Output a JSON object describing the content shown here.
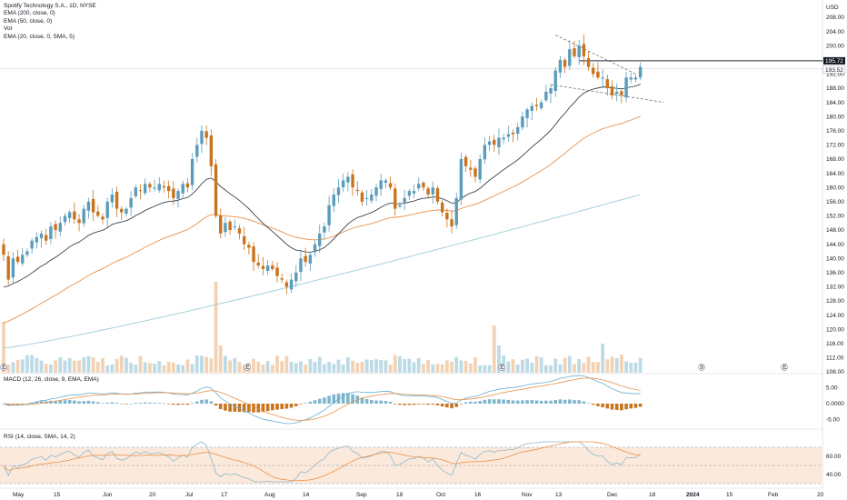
{
  "legend": {
    "symbol": "Spotify Technology S.A., 1D, NYSE",
    "ema200": "EMA (200, close, 0)",
    "ema50": "EMA (50, close, 0)",
    "vol": "Vol",
    "ema20": "EMA (20, close, 0, SMA, 5)"
  },
  "currency": "USD",
  "macd_label": "MACD (12, 26, close, 9, EMA, EMA)",
  "rsi_label": "RSI (14, close, SMA, 14, 2)",
  "price_tags": {
    "upper": "195.72",
    "lower": "193.52"
  },
  "event_markers": [
    "E",
    "E",
    "E",
    "9",
    "E"
  ],
  "colors": {
    "up": "#5b9cbb",
    "down": "#c8741f",
    "ema20": "#2a2e39",
    "ema50": "#e8924a",
    "ema200": "#9ccbd6",
    "macd": "#6aaed0",
    "signal": "#e8924a",
    "rsi": "#8fb8cc",
    "rsi_ma": "#e8924a",
    "rsi_band": "#fbe9dc"
  },
  "chart_data": [
    {
      "type": "candlestick",
      "title": "Spotify Technology S.A., 1D, NYSE",
      "ylabel": "USD",
      "ylim": [
        108,
        210
      ],
      "y_ticks": [
        "208.00",
        "204.00",
        "200.00",
        "196.00",
        "192.00",
        "188.00",
        "184.00",
        "180.00",
        "176.00",
        "172.00",
        "168.00",
        "164.00",
        "160.00",
        "156.00",
        "152.00",
        "148.00",
        "144.00",
        "140.00",
        "136.00",
        "132.00",
        "128.00",
        "124.00",
        "120.00",
        "116.00",
        "112.00",
        "108.00"
      ],
      "x_ticks": [
        "May",
        "15",
        "Jun",
        "20",
        "Jul",
        "17",
        "Aug",
        "14",
        "Sep",
        "18",
        "Oct",
        "16",
        "Nov",
        "13",
        "Dec",
        "18",
        "2024",
        "15",
        "Feb",
        "20"
      ],
      "closes": [
        141,
        134,
        140,
        139,
        141,
        142,
        145,
        146,
        147,
        145,
        149,
        148,
        150,
        152,
        153,
        151,
        150,
        154,
        156,
        153,
        152,
        151,
        156,
        158,
        154,
        153,
        154,
        157,
        160,
        159,
        161,
        160,
        160,
        161,
        160,
        159,
        157,
        159,
        161,
        160,
        168,
        172,
        176,
        174,
        166,
        152,
        147,
        150,
        148,
        149,
        147,
        144,
        143,
        139,
        138,
        137,
        138,
        137,
        135,
        134,
        132,
        134,
        136,
        140,
        139,
        141,
        144,
        147,
        149,
        155,
        158,
        160,
        162,
        163,
        160,
        159,
        156,
        157,
        158,
        160,
        162,
        162,
        160,
        154,
        155,
        157,
        159,
        159,
        161,
        160,
        158,
        160,
        156,
        153,
        151,
        149,
        157,
        168,
        166,
        165,
        163,
        168,
        172,
        173,
        172,
        174,
        174,
        175,
        175,
        177,
        180,
        182,
        183,
        183,
        184,
        187,
        188,
        193,
        196,
        194,
        199,
        197,
        200,
        197,
        194,
        192,
        191,
        191,
        188,
        186,
        187,
        186,
        191,
        191,
        191,
        194
      ],
      "ema20_start_end": [
        131,
        189
      ],
      "ema50_start_end": [
        121,
        183
      ],
      "ema200_start_end": [
        114.7,
        158
      ],
      "triangle_pattern": {
        "resistance_from": 203,
        "resistance_to": 192,
        "support_from": 189,
        "support_to": 184
      }
    },
    {
      "type": "bar",
      "title": "Vol",
      "note": "volume histogram overlaid at bottom of price pane"
    },
    {
      "type": "line",
      "title": "MACD (12, 26, close, 9, EMA, EMA)",
      "ylim": [
        -6.5,
        7.5
      ],
      "y_ticks": [
        "5.00",
        "0.0000",
        "-5.00"
      ]
    },
    {
      "type": "line",
      "title": "RSI (14, close, SMA, 14, 2)",
      "ylim": [
        32,
        76
      ],
      "y_ticks": [
        "60.00",
        "40.00"
      ],
      "bands": [
        70,
        50,
        30
      ]
    }
  ]
}
